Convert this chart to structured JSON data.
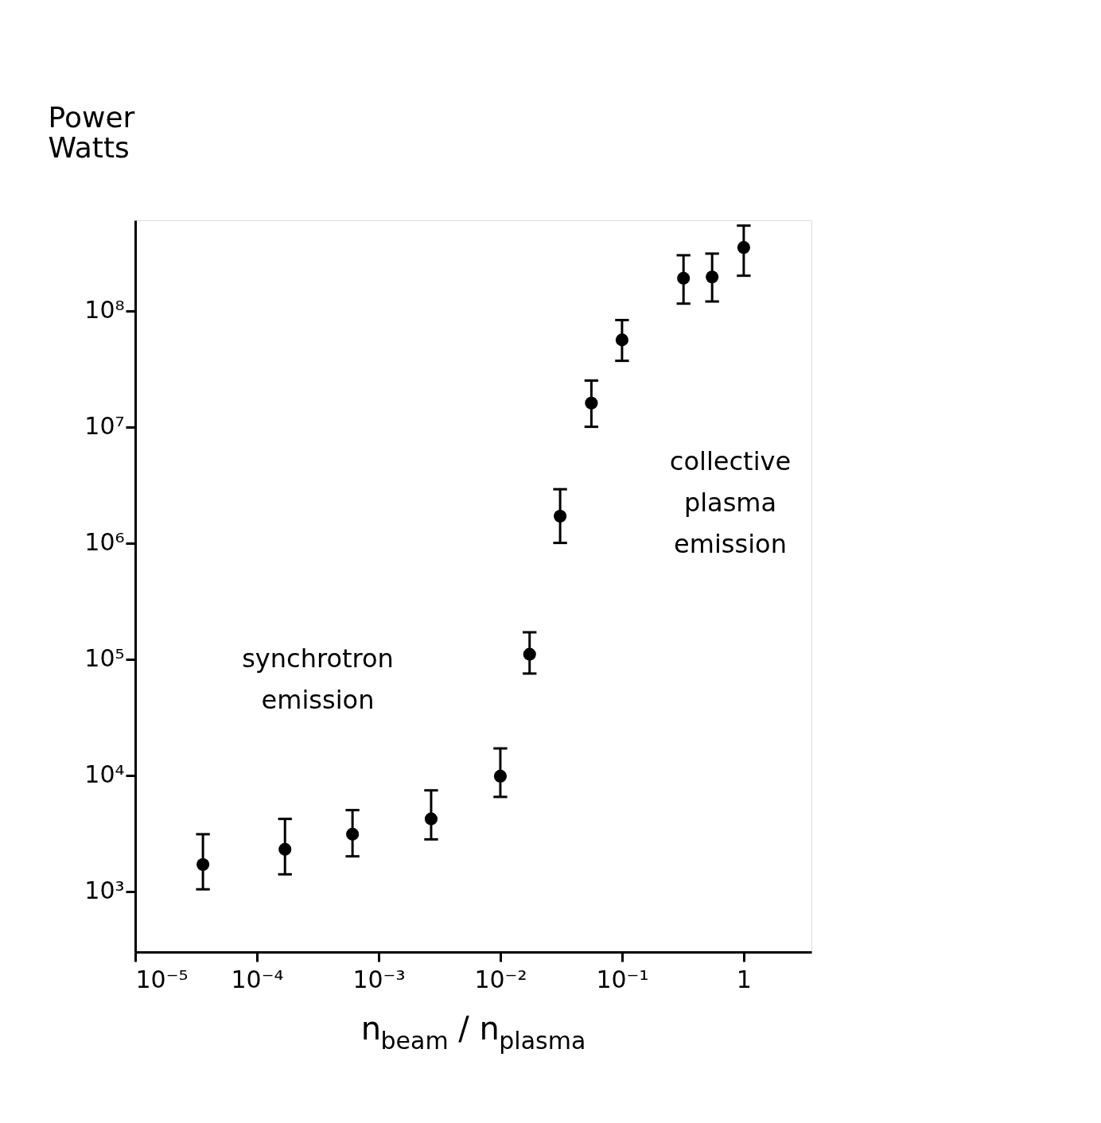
{
  "chart_data": {
    "type": "scatter",
    "xlabel": "n$_{beam}$ / n$_{plasma}$",
    "ylabel": "Power Watts",
    "x": [
      3.6e-05,
      0.00017,
      0.00061,
      0.0027,
      0.01,
      0.0174,
      0.031,
      0.056,
      0.1,
      0.32,
      0.55,
      1
    ],
    "series": [
      {
        "color": "#000000",
        "values": [
          1700,
          2300,
          3100,
          4200,
          9800,
          110000,
          1700000,
          16000000,
          56000000,
          190000000,
          195000000,
          350000000
        ],
        "errors": [
          [
            1040,
            3100
          ],
          [
            1400,
            4200
          ],
          [
            2000,
            5000
          ],
          [
            2800,
            7400
          ],
          [
            6500,
            17000
          ],
          [
            75000,
            170000
          ],
          [
            1000000,
            2900000
          ],
          [
            10000000,
            25000000
          ],
          [
            37000000,
            83000000
          ],
          [
            115000000,
            300000000
          ],
          [
            120000000,
            310000000
          ],
          [
            200000000,
            540000000
          ]
        ]
      }
    ],
    "log": "xy",
    "xlim": [
      1e-05,
      3.6
    ],
    "ylim": [
      300,
      600000000
    ],
    "xticks": [
      {
        "value": 1e-05,
        "label": "10⁻⁵"
      },
      {
        "value": 0.0001,
        "label": "10⁻⁴"
      },
      {
        "value": 0.001,
        "label": "10⁻³"
      },
      {
        "value": 0.01,
        "label": "10⁻²"
      },
      {
        "value": 0.1,
        "label": "10⁻¹"
      },
      {
        "value": 1,
        "label": "1"
      }
    ],
    "yticks": [
      {
        "value": 1000,
        "label": "10³"
      },
      {
        "value": 10000,
        "label": "10⁴"
      },
      {
        "value": 100000,
        "label": "10⁵"
      },
      {
        "value": 1000000,
        "label": "10⁶"
      },
      {
        "value": 10000000,
        "label": "10⁷"
      },
      {
        "value": 100000000,
        "label": "10⁸"
      }
    ],
    "annotations": [
      "synchrotron emission",
      "collective plasma emission"
    ],
    "marker": "circle",
    "grid": false,
    "legend": false
  }
}
